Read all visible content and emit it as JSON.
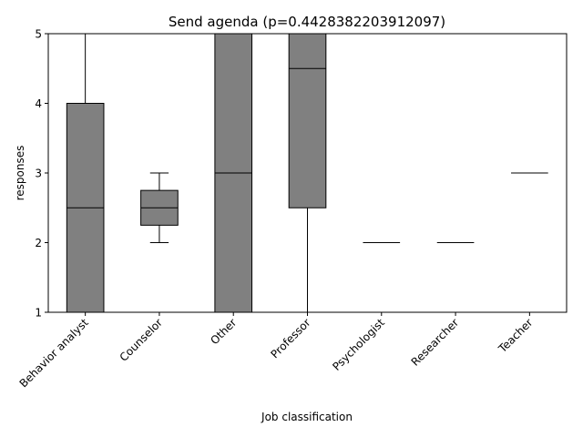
{
  "chart_data": {
    "type": "box",
    "title": "Send agenda (p=0.4428382203912097)",
    "xlabel": "Job classification",
    "ylabel": "responses",
    "ylim": [
      1,
      5
    ],
    "yticks": [
      "1",
      "2",
      "3",
      "4",
      "5"
    ],
    "categories": [
      "Behavior analyst",
      "Counselor",
      "Other",
      "Professor",
      "Psychologist",
      "Researcher",
      "Teacher"
    ],
    "boxes": [
      {
        "category": "Behavior analyst",
        "whisker_low": 1,
        "q1": 1,
        "median": 2.5,
        "q3": 4,
        "whisker_high": 5
      },
      {
        "category": "Counselor",
        "whisker_low": 2,
        "q1": 2.25,
        "median": 2.5,
        "q3": 2.75,
        "whisker_high": 3
      },
      {
        "category": "Other",
        "whisker_low": 1,
        "q1": 1,
        "median": 3,
        "q3": 5,
        "whisker_high": 5
      },
      {
        "category": "Professor",
        "whisker_low": 1,
        "q1": 2.5,
        "median": 4.5,
        "q3": 5,
        "whisker_high": 5
      },
      {
        "category": "Psychologist",
        "whisker_low": 2,
        "q1": 2,
        "median": 2,
        "q3": 2,
        "whisker_high": 2
      },
      {
        "category": "Researcher",
        "whisker_low": 2,
        "q1": 2,
        "median": 2,
        "q3": 2,
        "whisker_high": 2
      },
      {
        "category": "Teacher",
        "whisker_low": 3,
        "q1": 3,
        "median": 3,
        "q3": 3,
        "whisker_high": 3
      }
    ],
    "box_color": "#808080",
    "line_color": "#000000",
    "grid": false,
    "legend": "none"
  }
}
